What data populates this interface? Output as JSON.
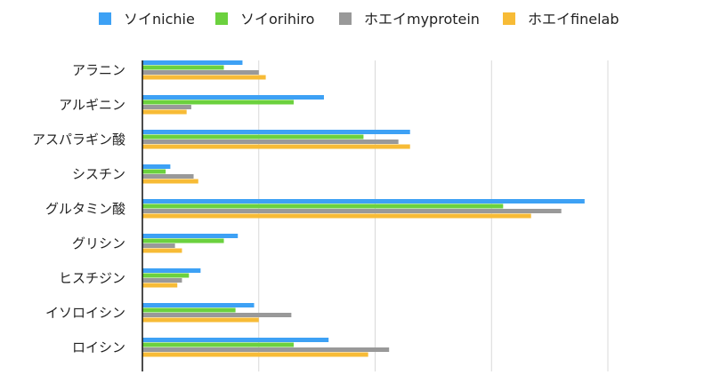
{
  "chart_data": {
    "type": "bar",
    "orientation": "horizontal",
    "title": "",
    "xlabel": "",
    "ylabel": "",
    "grid": true,
    "legend_position": "top",
    "xlim": [
      0,
      2000
    ],
    "categories": [
      "アラニン",
      "アルギニン",
      "アスパラギン酸",
      "シスチン",
      "グルタミン酸",
      "グリシン",
      "ヒスチジン",
      "イソロイシン",
      "ロイシン"
    ],
    "series": [
      {
        "name": "ソイnichie",
        "color": "#3da1f5",
        "values": [
          430,
          780,
          1150,
          120,
          1900,
          410,
          250,
          480,
          800
        ]
      },
      {
        "name": "ソイorihiro",
        "color": "#6bd13e",
        "values": [
          350,
          650,
          950,
          100,
          1550,
          350,
          200,
          400,
          650
        ]
      },
      {
        "name": "ホエイmyprotein",
        "color": "#999999",
        "values": [
          500,
          210,
          1100,
          220,
          1800,
          140,
          170,
          640,
          1060
        ]
      },
      {
        "name": "ホエイfinelab",
        "color": "#f7bb36",
        "values": [
          530,
          190,
          1150,
          240,
          1670,
          170,
          150,
          500,
          970
        ]
      }
    ]
  }
}
